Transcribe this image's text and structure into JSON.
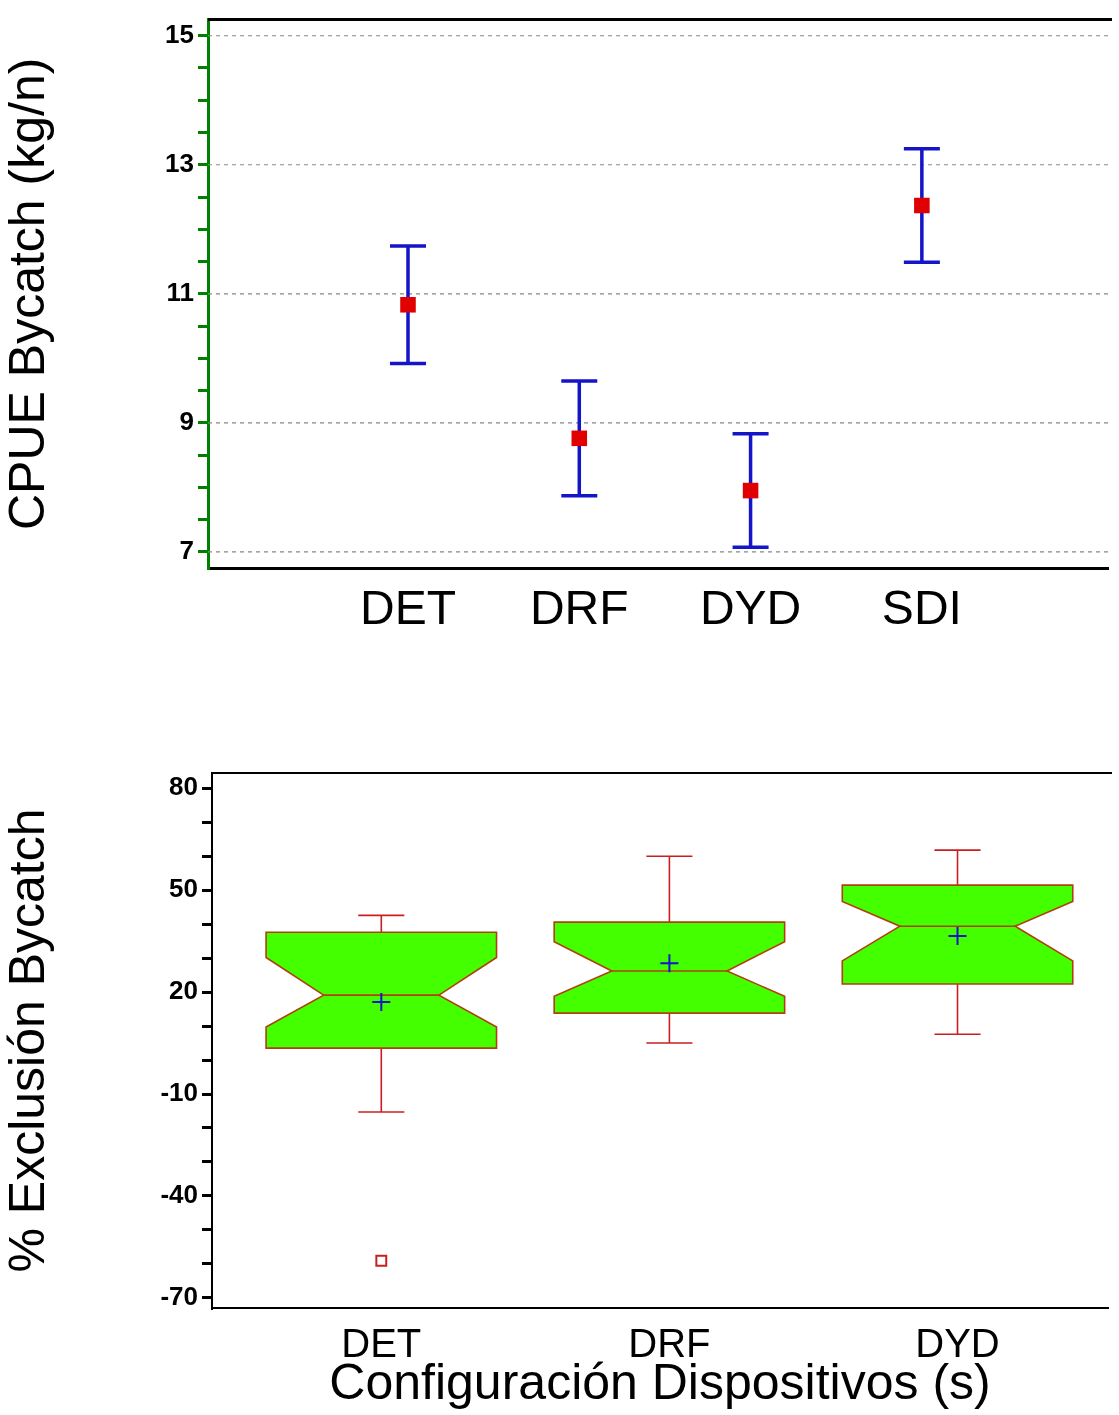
{
  "chart_data": [
    {
      "type": "scatter",
      "ylabel": "CPUE Bycatch (kg/n)",
      "categories": [
        "DET",
        "DRF",
        "DYD",
        "SDI"
      ],
      "marker": "square",
      "grid": "y",
      "legend": false,
      "series": [
        {
          "color": "#e00000",
          "values": [
            10.83,
            8.76,
            7.95,
            12.37
          ],
          "errors": [
            0.91,
            0.89,
            0.88,
            0.88
          ]
        }
      ],
      "ylim": [
        6.75,
        15.25
      ],
      "yticks": [
        7,
        {
          "value": 7.5,
          "label": null
        },
        {
          "value": 8,
          "label": null
        },
        {
          "value": 8.5,
          "label": null
        },
        9,
        {
          "value": 9.5,
          "label": null
        },
        {
          "value": 10,
          "label": null
        },
        {
          "value": 10.5,
          "label": null
        },
        11,
        {
          "value": 11.5,
          "label": null
        },
        {
          "value": 12,
          "label": null
        },
        {
          "value": 12.5,
          "label": null
        },
        13,
        {
          "value": 13.5,
          "label": null
        },
        {
          "value": 14,
          "label": null
        },
        {
          "value": 14.5,
          "label": null
        },
        15
      ]
    },
    {
      "type": "box",
      "ylabel": "% Exclusión Bycatch",
      "xlabel": "Configuración Dispositivos (s)",
      "categories": [
        "DET",
        "DRF",
        "DYD"
      ],
      "color": "#44ff00",
      "grid": false,
      "legend": false,
      "boxes": [
        {
          "low": -15.3,
          "q1": 3.5,
          "median": 19.1,
          "q3": 37.6,
          "high": 42.6,
          "mean": 17.1,
          "outliers": [
            -59.1
          ]
        },
        {
          "low": 5,
          "q1": 13.8,
          "median": 26.2,
          "q3": 40.6,
          "high": 60,
          "mean": 28.5
        },
        {
          "low": 7.6,
          "q1": 22.4,
          "median": 39.4,
          "q3": 51.5,
          "high": 61.8,
          "mean": 36.5
        }
      ],
      "ylim": [
        -73,
        84.5
      ],
      "yticks": [
        -70,
        {
          "value": -60,
          "label": null
        },
        {
          "value": -50,
          "label": null
        },
        -40,
        {
          "value": -30,
          "label": null
        },
        {
          "value": -20,
          "label": null
        },
        -10,
        {
          "value": 0,
          "label": null
        },
        {
          "value": 10,
          "label": null
        },
        20,
        {
          "value": 30,
          "label": null
        },
        {
          "value": 40,
          "label": null
        },
        50,
        {
          "value": 60,
          "label": null
        },
        {
          "value": 70,
          "label": null
        },
        80
      ]
    }
  ]
}
